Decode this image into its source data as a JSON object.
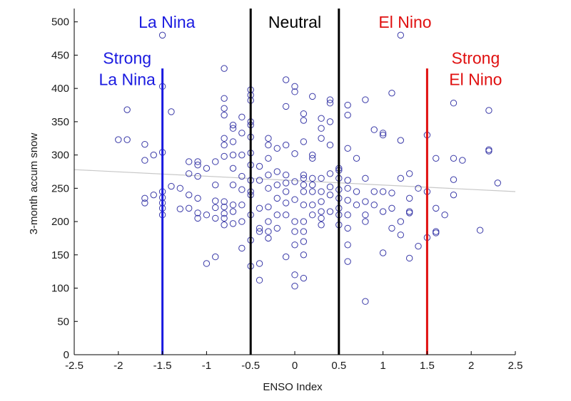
{
  "chart_data": {
    "type": "scatter",
    "title": "",
    "xlabel": "ENSO Index",
    "ylabel": "3-month accum snow",
    "xlim": [
      -2.5,
      2.5
    ],
    "ylim": [
      0,
      520
    ],
    "xticks": [
      "-2.5",
      "-2",
      "-1.5",
      "-1",
      "-0.5",
      "0",
      "0.5",
      "1",
      "1.5",
      "2",
      "2.5"
    ],
    "yticks": [
      "0",
      "50",
      "100",
      "150",
      "200",
      "250",
      "300",
      "350",
      "400",
      "450",
      "500"
    ],
    "grid": false,
    "marker_color": "#3a3aa8",
    "trend_line": {
      "x": [
        -2.5,
        2.5
      ],
      "y": [
        278,
        245
      ],
      "color": "#c8c8c8"
    },
    "vertical_lines": [
      {
        "x": -1.5,
        "y_top": 430,
        "color": "#1a1ae0",
        "label": "Strong\nLa Nina"
      },
      {
        "x": -0.5,
        "y_top": 520,
        "color": "#000000",
        "label": ""
      },
      {
        "x": 0.5,
        "y_top": 520,
        "color": "#000000",
        "label": ""
      },
      {
        "x": 1.5,
        "y_top": 430,
        "color": "#e01010",
        "label": "Strong\nEl Nino"
      }
    ],
    "region_labels": [
      {
        "text": "La Nina",
        "color": "#1a1ae0"
      },
      {
        "text": "Neutral",
        "color": "#000000"
      },
      {
        "text": "El Nino",
        "color": "#e01010"
      }
    ],
    "points": [
      [
        -2.0,
        323
      ],
      [
        -1.9,
        323
      ],
      [
        -1.9,
        368
      ],
      [
        -1.7,
        235
      ],
      [
        -1.7,
        228
      ],
      [
        -1.7,
        292
      ],
      [
        -1.7,
        316
      ],
      [
        -1.6,
        240
      ],
      [
        -1.6,
        300
      ],
      [
        -1.5,
        480
      ],
      [
        -1.5,
        403
      ],
      [
        -1.5,
        304
      ],
      [
        -1.5,
        245
      ],
      [
        -1.5,
        236
      ],
      [
        -1.5,
        228
      ],
      [
        -1.5,
        220
      ],
      [
        -1.5,
        210
      ],
      [
        -1.4,
        365
      ],
      [
        -1.4,
        253
      ],
      [
        -1.3,
        250
      ],
      [
        -1.3,
        219
      ],
      [
        -1.2,
        290
      ],
      [
        -1.2,
        272
      ],
      [
        -1.2,
        240
      ],
      [
        -1.2,
        220
      ],
      [
        -1.1,
        290
      ],
      [
        -1.1,
        268
      ],
      [
        -1.1,
        235
      ],
      [
        -1.1,
        213
      ],
      [
        -1.1,
        205
      ],
      [
        -1.1,
        285
      ],
      [
        -1.0,
        280
      ],
      [
        -1.0,
        210
      ],
      [
        -1.0,
        137
      ],
      [
        -0.9,
        290
      ],
      [
        -0.9,
        255
      ],
      [
        -0.9,
        231
      ],
      [
        -0.9,
        221
      ],
      [
        -0.9,
        205
      ],
      [
        -0.9,
        147
      ],
      [
        -0.8,
        430
      ],
      [
        -0.8,
        385
      ],
      [
        -0.8,
        370
      ],
      [
        -0.8,
        360
      ],
      [
        -0.8,
        325
      ],
      [
        -0.8,
        315
      ],
      [
        -0.8,
        298
      ],
      [
        -0.8,
        230
      ],
      [
        -0.8,
        222
      ],
      [
        -0.8,
        212
      ],
      [
        -0.8,
        205
      ],
      [
        -0.8,
        195
      ],
      [
        -0.7,
        345
      ],
      [
        -0.7,
        340
      ],
      [
        -0.7,
        320
      ],
      [
        -0.7,
        300
      ],
      [
        -0.7,
        280
      ],
      [
        -0.7,
        255
      ],
      [
        -0.7,
        225
      ],
      [
        -0.7,
        215
      ],
      [
        -0.7,
        197
      ],
      [
        -0.6,
        357
      ],
      [
        -0.6,
        333
      ],
      [
        -0.6,
        300
      ],
      [
        -0.6,
        268
      ],
      [
        -0.6,
        248
      ],
      [
        -0.6,
        225
      ],
      [
        -0.6,
        200
      ],
      [
        -0.6,
        160
      ],
      [
        -0.5,
        398
      ],
      [
        -0.5,
        390
      ],
      [
        -0.5,
        382
      ],
      [
        -0.5,
        350
      ],
      [
        -0.5,
        345
      ],
      [
        -0.5,
        327
      ],
      [
        -0.5,
        303
      ],
      [
        -0.5,
        285
      ],
      [
        -0.5,
        262
      ],
      [
        -0.5,
        245
      ],
      [
        -0.5,
        240
      ],
      [
        -0.5,
        210
      ],
      [
        -0.5,
        172
      ],
      [
        -0.5,
        133
      ],
      [
        -0.4,
        283
      ],
      [
        -0.4,
        262
      ],
      [
        -0.4,
        220
      ],
      [
        -0.4,
        190
      ],
      [
        -0.4,
        185
      ],
      [
        -0.4,
        137
      ],
      [
        -0.4,
        112
      ],
      [
        -0.3,
        325
      ],
      [
        -0.3,
        315
      ],
      [
        -0.3,
        295
      ],
      [
        -0.3,
        270
      ],
      [
        -0.3,
        250
      ],
      [
        -0.3,
        222
      ],
      [
        -0.3,
        200
      ],
      [
        -0.3,
        175
      ],
      [
        -0.3,
        185
      ],
      [
        -0.2,
        310
      ],
      [
        -0.2,
        275
      ],
      [
        -0.2,
        255
      ],
      [
        -0.2,
        235
      ],
      [
        -0.2,
        210
      ],
      [
        -0.2,
        190
      ],
      [
        -0.1,
        413
      ],
      [
        -0.1,
        373
      ],
      [
        -0.1,
        315
      ],
      [
        -0.1,
        270
      ],
      [
        -0.1,
        258
      ],
      [
        -0.1,
        245
      ],
      [
        -0.1,
        228
      ],
      [
        -0.1,
        210
      ],
      [
        -0.1,
        147
      ],
      [
        0.0,
        403
      ],
      [
        0.0,
        395
      ],
      [
        0.0,
        302
      ],
      [
        0.0,
        260
      ],
      [
        0.0,
        233
      ],
      [
        0.0,
        200
      ],
      [
        0.0,
        185
      ],
      [
        0.0,
        165
      ],
      [
        0.0,
        120
      ],
      [
        0.0,
        103
      ],
      [
        0.1,
        362
      ],
      [
        0.1,
        352
      ],
      [
        0.1,
        270
      ],
      [
        0.1,
        265
      ],
      [
        0.1,
        255
      ],
      [
        0.1,
        245
      ],
      [
        0.1,
        225
      ],
      [
        0.1,
        200
      ],
      [
        0.1,
        185
      ],
      [
        0.1,
        170
      ],
      [
        0.1,
        150
      ],
      [
        0.1,
        115
      ],
      [
        0.1,
        320
      ],
      [
        0.2,
        388
      ],
      [
        0.2,
        300
      ],
      [
        0.2,
        295
      ],
      [
        0.2,
        265
      ],
      [
        0.2,
        255
      ],
      [
        0.2,
        245
      ],
      [
        0.2,
        225
      ],
      [
        0.2,
        210
      ],
      [
        0.3,
        355
      ],
      [
        0.3,
        340
      ],
      [
        0.3,
        325
      ],
      [
        0.3,
        265
      ],
      [
        0.3,
        245
      ],
      [
        0.3,
        230
      ],
      [
        0.3,
        215
      ],
      [
        0.3,
        205
      ],
      [
        0.3,
        195
      ],
      [
        0.4,
        383
      ],
      [
        0.4,
        378
      ],
      [
        0.4,
        350
      ],
      [
        0.4,
        315
      ],
      [
        0.4,
        272
      ],
      [
        0.4,
        252
      ],
      [
        0.4,
        240
      ],
      [
        0.4,
        215
      ],
      [
        0.5,
        280
      ],
      [
        0.5,
        277
      ],
      [
        0.5,
        265
      ],
      [
        0.5,
        248
      ],
      [
        0.5,
        235
      ],
      [
        0.5,
        220
      ],
      [
        0.5,
        210
      ],
      [
        0.5,
        195
      ],
      [
        0.6,
        375
      ],
      [
        0.6,
        360
      ],
      [
        0.6,
        310
      ],
      [
        0.6,
        262
      ],
      [
        0.6,
        250
      ],
      [
        0.6,
        232
      ],
      [
        0.6,
        210
      ],
      [
        0.6,
        190
      ],
      [
        0.6,
        165
      ],
      [
        0.6,
        140
      ],
      [
        0.7,
        295
      ],
      [
        0.7,
        245
      ],
      [
        0.7,
        225
      ],
      [
        0.8,
        383
      ],
      [
        0.8,
        265
      ],
      [
        0.8,
        230
      ],
      [
        0.8,
        210
      ],
      [
        0.8,
        200
      ],
      [
        0.8,
        80
      ],
      [
        0.9,
        338
      ],
      [
        0.9,
        225
      ],
      [
        0.9,
        245
      ],
      [
        1.0,
        333
      ],
      [
        1.0,
        330
      ],
      [
        1.0,
        245
      ],
      [
        1.0,
        215
      ],
      [
        1.0,
        153
      ],
      [
        1.1,
        393
      ],
      [
        1.1,
        243
      ],
      [
        1.1,
        220
      ],
      [
        1.1,
        190
      ],
      [
        1.2,
        480
      ],
      [
        1.2,
        322
      ],
      [
        1.2,
        265
      ],
      [
        1.2,
        200
      ],
      [
        1.2,
        180
      ],
      [
        1.3,
        272
      ],
      [
        1.3,
        235
      ],
      [
        1.3,
        215
      ],
      [
        1.3,
        213
      ],
      [
        1.3,
        145
      ],
      [
        1.4,
        163
      ],
      [
        1.4,
        250
      ],
      [
        1.5,
        330
      ],
      [
        1.5,
        245
      ],
      [
        1.5,
        176
      ],
      [
        1.6,
        295
      ],
      [
        1.6,
        220
      ],
      [
        1.6,
        185
      ],
      [
        1.6,
        183
      ],
      [
        1.7,
        210
      ],
      [
        1.8,
        378
      ],
      [
        1.8,
        295
      ],
      [
        1.8,
        263
      ],
      [
        1.8,
        240
      ],
      [
        1.9,
        292
      ],
      [
        2.1,
        187
      ],
      [
        2.2,
        367
      ],
      [
        2.2,
        308
      ],
      [
        2.2,
        306
      ],
      [
        2.3,
        258
      ]
    ]
  }
}
